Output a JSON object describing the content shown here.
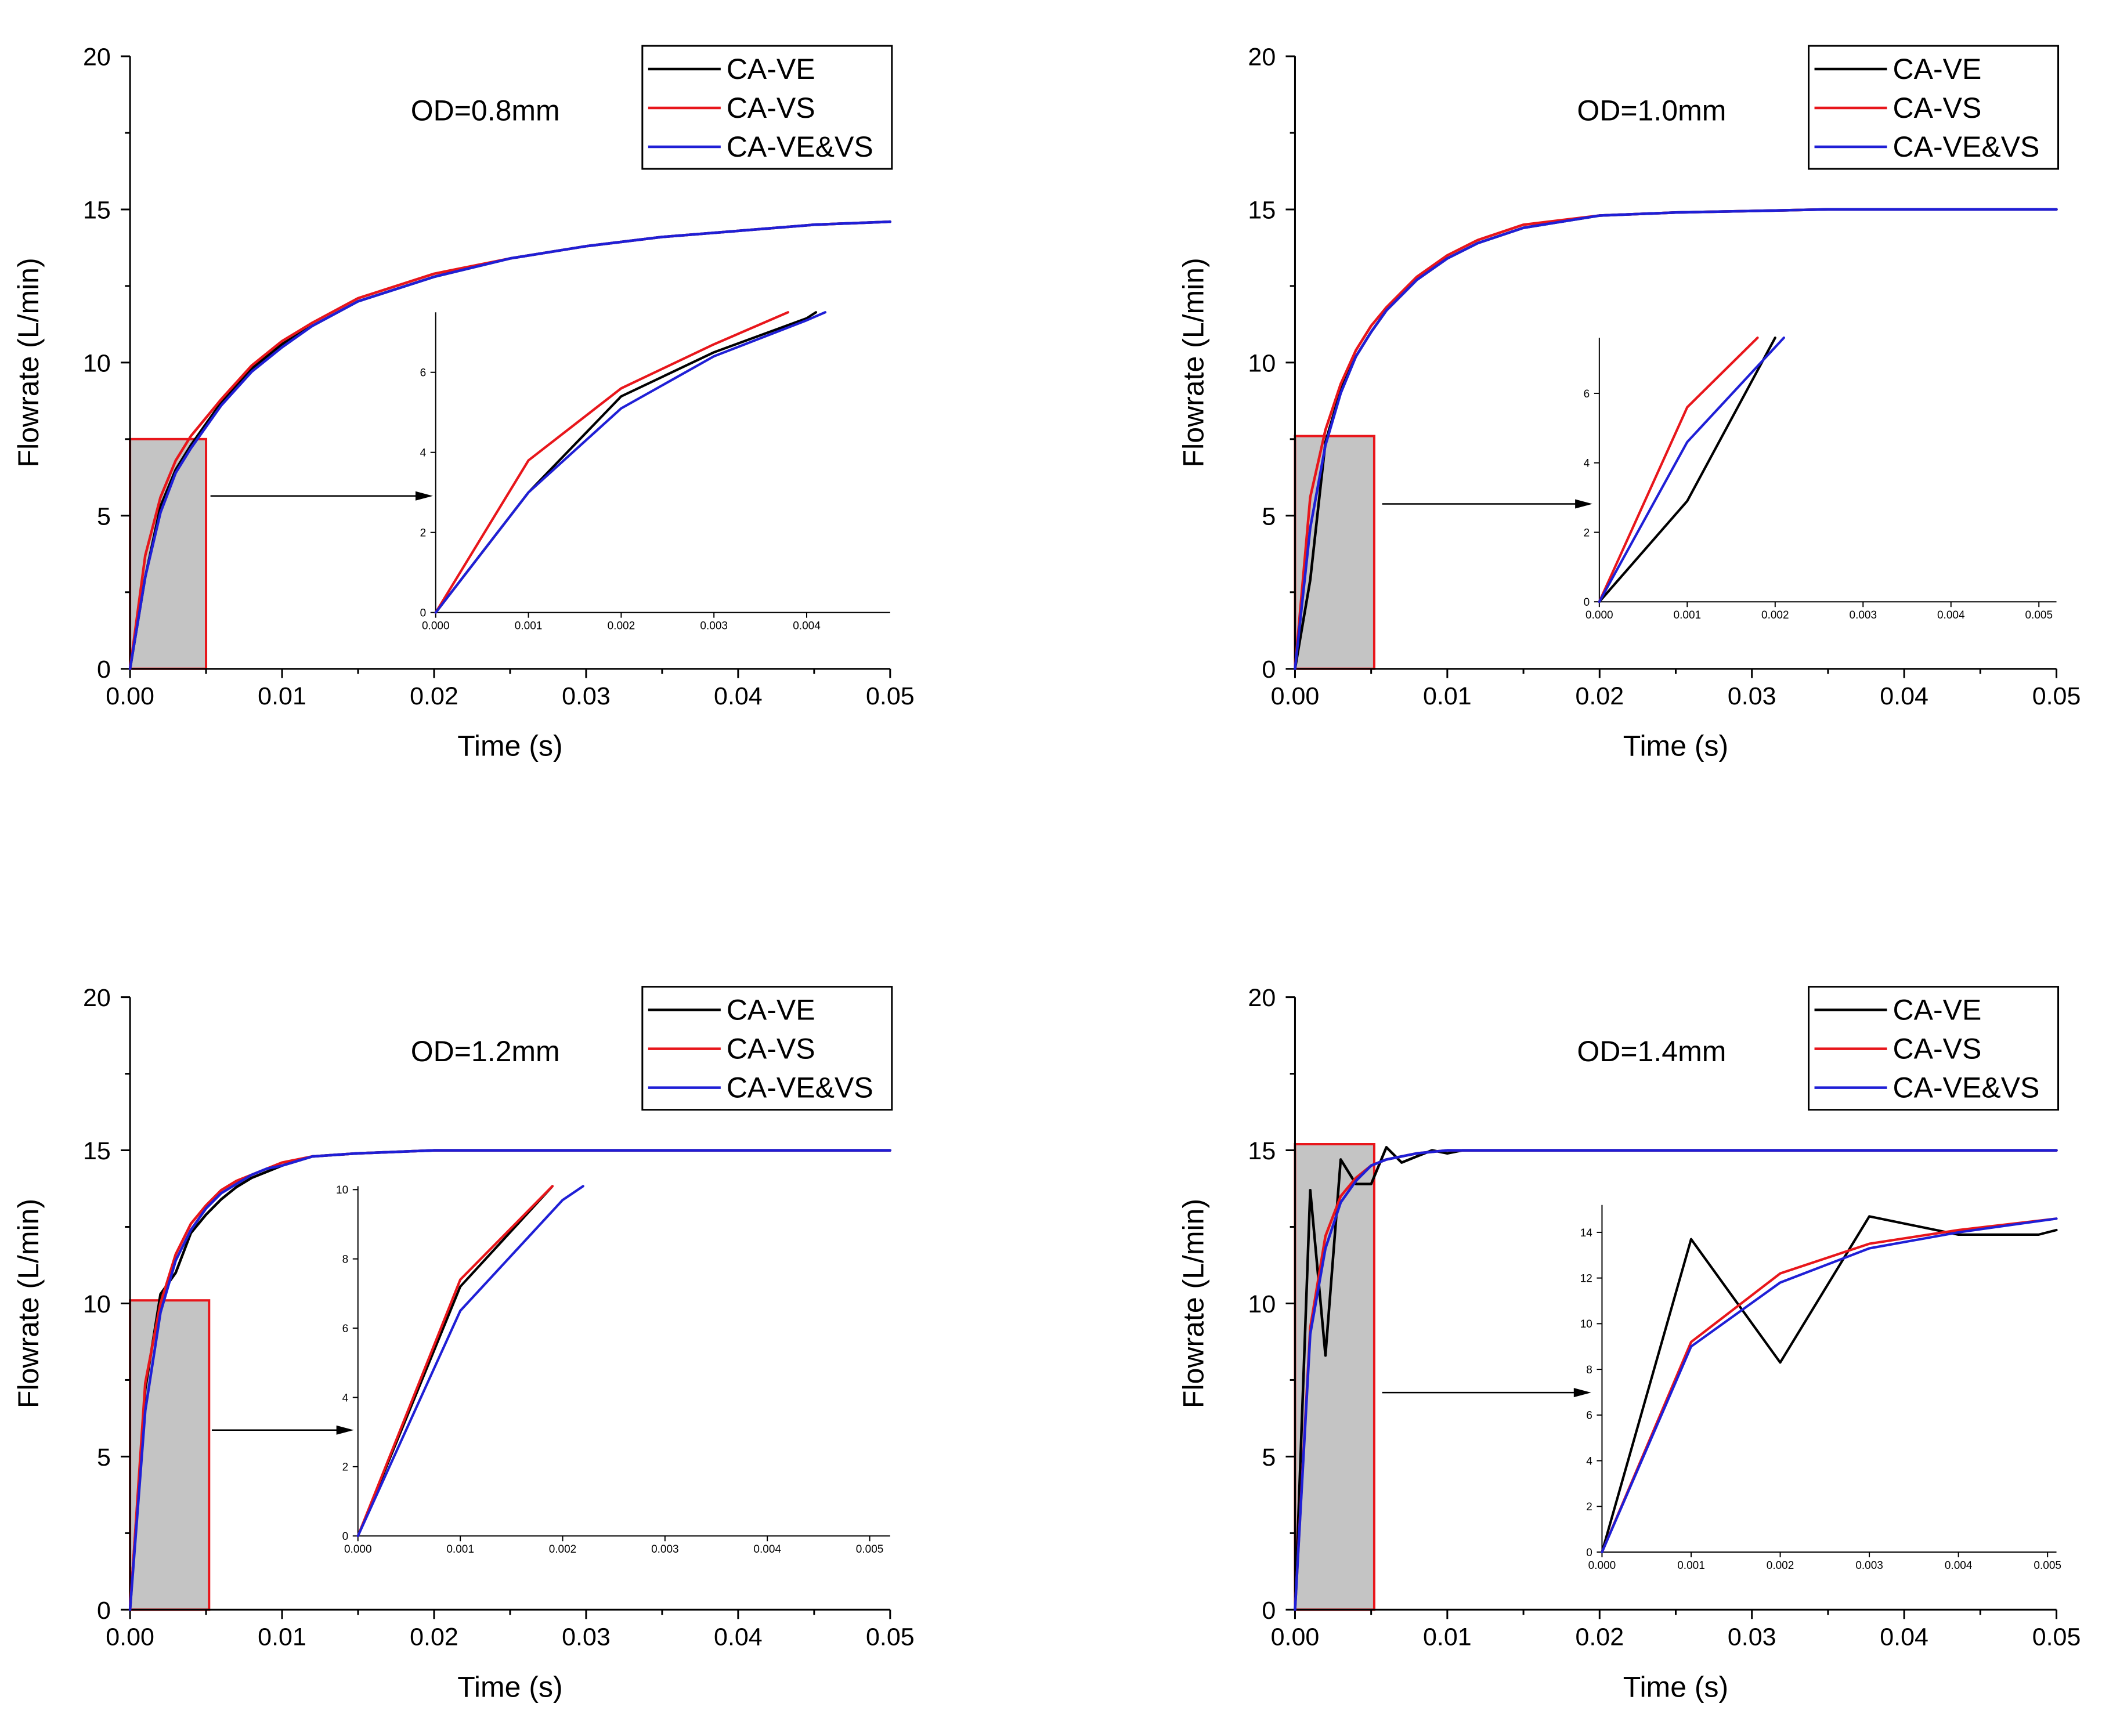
{
  "figure": {
    "legend_labels": [
      "CA-VE",
      "CA-VS",
      "CA-VE&VS"
    ],
    "colors": {
      "CA-VE": "#000000",
      "CA-VS": "#e8161b",
      "CA-VE&VS": "#1f1fd6",
      "zoom_fill": "#c4c4c4",
      "zoom_edge": "#e8161b"
    }
  },
  "chart_data": [
    {
      "type": "line",
      "annotation": "OD=0.8mm",
      "xlabel": "Time (s)",
      "ylabel": "Flowrate (L/min)",
      "xlim": [
        0,
        0.05
      ],
      "ylim": [
        0,
        20
      ],
      "xticks": [
        0,
        0.01,
        0.02,
        0.03,
        0.04,
        0.05
      ],
      "xtick_labels": [
        "0.00",
        "0.01",
        "0.02",
        "0.03",
        "0.04",
        "0.05"
      ],
      "yticks": [
        0,
        5,
        10,
        15,
        20
      ],
      "ytick_labels": [
        "0",
        "5",
        "10",
        "15",
        "20"
      ],
      "legend_position": "top-right",
      "zoom_region": {
        "x": [
          0,
          0.005
        ],
        "y": [
          0,
          7.5
        ]
      },
      "series": [
        {
          "name": "CA-VE",
          "x": [
            0,
            0.001,
            0.002,
            0.003,
            0.004,
            0.005,
            0.006,
            0.008,
            0.01,
            0.012,
            0.015,
            0.02,
            0.025,
            0.03,
            0.035,
            0.04,
            0.045,
            0.05
          ],
          "y": [
            0,
            3.0,
            5.3,
            6.5,
            7.3,
            8.0,
            8.7,
            9.8,
            10.6,
            11.2,
            12.0,
            12.8,
            13.4,
            13.8,
            14.1,
            14.3,
            14.5,
            14.6
          ]
        },
        {
          "name": "CA-VS",
          "x": [
            0,
            0.001,
            0.002,
            0.003,
            0.004,
            0.005,
            0.006,
            0.008,
            0.01,
            0.012,
            0.015,
            0.02,
            0.025,
            0.03,
            0.035,
            0.04,
            0.045,
            0.05
          ],
          "y": [
            0,
            3.7,
            5.6,
            6.8,
            7.6,
            8.2,
            8.8,
            9.9,
            10.7,
            11.3,
            12.1,
            12.9,
            13.4,
            13.8,
            14.1,
            14.3,
            14.5,
            14.6
          ]
        },
        {
          "name": "CA-VE&VS",
          "x": [
            0,
            0.001,
            0.002,
            0.003,
            0.004,
            0.005,
            0.006,
            0.008,
            0.01,
            0.012,
            0.015,
            0.02,
            0.025,
            0.03,
            0.035,
            0.04,
            0.045,
            0.05
          ],
          "y": [
            0,
            3.0,
            5.1,
            6.4,
            7.2,
            7.9,
            8.6,
            9.7,
            10.5,
            11.2,
            12.0,
            12.8,
            13.4,
            13.8,
            14.1,
            14.3,
            14.5,
            14.6
          ]
        }
      ],
      "inset": {
        "xlim": [
          0,
          0.0049
        ],
        "ylim": [
          0,
          7.5
        ],
        "xticks": [
          0,
          0.001,
          0.002,
          0.003,
          0.004
        ],
        "xtick_labels": [
          "0.000",
          "0.001",
          "0.002",
          "0.003",
          "0.004"
        ],
        "yticks": [
          0,
          2,
          4,
          6
        ],
        "ytick_labels": [
          "0",
          "2",
          "4",
          "6"
        ],
        "series": [
          {
            "name": "CA-VE",
            "x": [
              0,
              0.001,
              0.002,
              0.003,
              0.004,
              0.0041
            ],
            "y": [
              0,
              3.0,
              5.4,
              6.5,
              7.35,
              7.5
            ]
          },
          {
            "name": "CA-VS",
            "x": [
              0,
              0.001,
              0.002,
              0.003,
              0.0038
            ],
            "y": [
              0,
              3.8,
              5.6,
              6.7,
              7.5
            ]
          },
          {
            "name": "CA-VE&VS",
            "x": [
              0,
              0.001,
              0.002,
              0.003,
              0.004,
              0.0042
            ],
            "y": [
              0,
              3.0,
              5.1,
              6.4,
              7.3,
              7.5
            ]
          }
        ]
      }
    },
    {
      "type": "line",
      "annotation": "OD=1.0mm",
      "xlabel": "Time (s)",
      "ylabel": "Flowrate (L/min)",
      "xlim": [
        0,
        0.05
      ],
      "ylim": [
        0,
        20
      ],
      "xticks": [
        0,
        0.01,
        0.02,
        0.03,
        0.04,
        0.05
      ],
      "xtick_labels": [
        "0.00",
        "0.01",
        "0.02",
        "0.03",
        "0.04",
        "0.05"
      ],
      "yticks": [
        0,
        5,
        10,
        15,
        20
      ],
      "ytick_labels": [
        "0",
        "5",
        "10",
        "15",
        "20"
      ],
      "legend_position": "top-right",
      "zoom_region": {
        "x": [
          0,
          0.0052
        ],
        "y": [
          0,
          7.6
        ]
      },
      "series": [
        {
          "name": "CA-VE",
          "x": [
            0,
            0.001,
            0.002,
            0.003,
            0.004,
            0.005,
            0.006,
            0.008,
            0.01,
            0.012,
            0.015,
            0.02,
            0.025,
            0.03,
            0.035,
            0.04,
            0.05
          ],
          "y": [
            0,
            2.9,
            7.4,
            9.1,
            10.2,
            11.0,
            11.7,
            12.7,
            13.4,
            13.9,
            14.4,
            14.8,
            14.9,
            14.95,
            15.0,
            15.0,
            15.0
          ]
        },
        {
          "name": "CA-VS",
          "x": [
            0,
            0.001,
            0.002,
            0.003,
            0.004,
            0.005,
            0.006,
            0.008,
            0.01,
            0.012,
            0.015,
            0.02,
            0.025,
            0.03,
            0.035,
            0.04,
            0.05
          ],
          "y": [
            0,
            5.6,
            7.8,
            9.3,
            10.4,
            11.2,
            11.8,
            12.8,
            13.5,
            14.0,
            14.5,
            14.8,
            14.9,
            14.95,
            15.0,
            15.0,
            15.0
          ]
        },
        {
          "name": "CA-VE&VS",
          "x": [
            0,
            0.001,
            0.002,
            0.003,
            0.004,
            0.005,
            0.006,
            0.008,
            0.01,
            0.012,
            0.015,
            0.02,
            0.025,
            0.03,
            0.035,
            0.04,
            0.05
          ],
          "y": [
            0,
            4.6,
            7.3,
            9.0,
            10.2,
            11.0,
            11.7,
            12.7,
            13.4,
            13.9,
            14.4,
            14.8,
            14.9,
            14.95,
            15.0,
            15.0,
            15.0
          ]
        }
      ],
      "inset": {
        "xlim": [
          0,
          0.0052
        ],
        "ylim": [
          0,
          7.6
        ],
        "xticks": [
          0,
          0.001,
          0.002,
          0.003,
          0.004,
          0.005
        ],
        "xtick_labels": [
          "0.000",
          "0.001",
          "0.002",
          "0.003",
          "0.004",
          "0.005"
        ],
        "yticks": [
          0,
          2,
          4,
          6
        ],
        "ytick_labels": [
          "0",
          "2",
          "4",
          "6"
        ],
        "series": [
          {
            "name": "CA-VE",
            "x": [
              0,
              0.001,
              0.002
            ],
            "y": [
              0,
              2.9,
              7.6
            ]
          },
          {
            "name": "CA-VS",
            "x": [
              0,
              0.001,
              0.0018
            ],
            "y": [
              0,
              5.6,
              7.6
            ]
          },
          {
            "name": "CA-VE&VS",
            "x": [
              0,
              0.001,
              0.0021
            ],
            "y": [
              0,
              4.6,
              7.6
            ]
          }
        ]
      }
    },
    {
      "type": "line",
      "annotation": "OD=1.2mm",
      "xlabel": "Time (s)",
      "ylabel": "Flowrate (L/min)",
      "xlim": [
        0,
        0.05
      ],
      "ylim": [
        0,
        20
      ],
      "xticks": [
        0,
        0.01,
        0.02,
        0.03,
        0.04,
        0.05
      ],
      "xtick_labels": [
        "0.00",
        "0.01",
        "0.02",
        "0.03",
        "0.04",
        "0.05"
      ],
      "yticks": [
        0,
        5,
        10,
        15,
        20
      ],
      "ytick_labels": [
        "0",
        "5",
        "10",
        "15",
        "20"
      ],
      "legend_position": "top-right",
      "zoom_region": {
        "x": [
          0,
          0.0052
        ],
        "y": [
          0,
          10.1
        ]
      },
      "series": [
        {
          "name": "CA-VE",
          "x": [
            0,
            0.001,
            0.002,
            0.003,
            0.004,
            0.005,
            0.006,
            0.007,
            0.008,
            0.009,
            0.01,
            0.012,
            0.015,
            0.02,
            0.025,
            0.03,
            0.04,
            0.05
          ],
          "y": [
            0,
            7.2,
            10.3,
            11.0,
            12.3,
            12.9,
            13.4,
            13.8,
            14.1,
            14.3,
            14.5,
            14.8,
            14.9,
            15.0,
            15.0,
            15.0,
            15.0,
            15.0
          ]
        },
        {
          "name": "CA-VS",
          "x": [
            0,
            0.001,
            0.002,
            0.003,
            0.004,
            0.005,
            0.006,
            0.007,
            0.008,
            0.009,
            0.01,
            0.012,
            0.015,
            0.02,
            0.025,
            0.03,
            0.04,
            0.05
          ],
          "y": [
            0,
            7.4,
            10.0,
            11.6,
            12.6,
            13.2,
            13.7,
            14.0,
            14.2,
            14.4,
            14.6,
            14.8,
            14.9,
            15.0,
            15.0,
            15.0,
            15.0,
            15.0
          ]
        },
        {
          "name": "CA-VE&VS",
          "x": [
            0,
            0.001,
            0.002,
            0.003,
            0.004,
            0.005,
            0.006,
            0.007,
            0.008,
            0.009,
            0.01,
            0.012,
            0.015,
            0.02,
            0.025,
            0.03,
            0.04,
            0.05
          ],
          "y": [
            0,
            6.5,
            9.7,
            11.4,
            12.4,
            13.1,
            13.6,
            13.9,
            14.2,
            14.4,
            14.5,
            14.8,
            14.9,
            15.0,
            15.0,
            15.0,
            15.0,
            15.0
          ]
        }
      ],
      "inset": {
        "xlim": [
          0,
          0.0052
        ],
        "ylim": [
          0,
          10.1
        ],
        "xticks": [
          0,
          0.001,
          0.002,
          0.003,
          0.004,
          0.005
        ],
        "xtick_labels": [
          "0.000",
          "0.001",
          "0.002",
          "0.003",
          "0.004",
          "0.005"
        ],
        "yticks": [
          0,
          2,
          4,
          6,
          8,
          10
        ],
        "ytick_labels": [
          "0",
          "2",
          "4",
          "6",
          "8",
          "10"
        ],
        "series": [
          {
            "name": "CA-VE",
            "x": [
              0,
              0.001,
              0.0019
            ],
            "y": [
              0,
              7.2,
              10.1
            ]
          },
          {
            "name": "CA-VS",
            "x": [
              0,
              0.001,
              0.0019
            ],
            "y": [
              0,
              7.4,
              10.1
            ]
          },
          {
            "name": "CA-VE&VS",
            "x": [
              0,
              0.001,
              0.002,
              0.0022
            ],
            "y": [
              0,
              6.5,
              9.7,
              10.1
            ]
          }
        ]
      }
    },
    {
      "type": "line",
      "annotation": "OD=1.4mm",
      "xlabel": "Time (s)",
      "ylabel": "Flowrate (L/min)",
      "xlim": [
        0,
        0.05
      ],
      "ylim": [
        0,
        20
      ],
      "xticks": [
        0,
        0.01,
        0.02,
        0.03,
        0.04,
        0.05
      ],
      "xtick_labels": [
        "0.00",
        "0.01",
        "0.02",
        "0.03",
        "0.04",
        "0.05"
      ],
      "yticks": [
        0,
        5,
        10,
        15,
        20
      ],
      "ytick_labels": [
        "0",
        "5",
        "10",
        "15",
        "20"
      ],
      "legend_position": "top-right",
      "zoom_region": {
        "x": [
          0,
          0.0052
        ],
        "y": [
          0,
          15.2
        ]
      },
      "series": [
        {
          "name": "CA-VE",
          "x": [
            0,
            0.001,
            0.002,
            0.003,
            0.004,
            0.005,
            0.006,
            0.007,
            0.008,
            0.009,
            0.01,
            0.011,
            0.012,
            0.015,
            0.02,
            0.03,
            0.04,
            0.05
          ],
          "y": [
            0,
            13.7,
            8.3,
            14.7,
            13.9,
            13.9,
            15.1,
            14.6,
            14.8,
            15.0,
            14.9,
            15.0,
            15.0,
            15.0,
            15.0,
            15.0,
            15.0,
            15.0
          ]
        },
        {
          "name": "CA-VS",
          "x": [
            0,
            0.001,
            0.002,
            0.003,
            0.004,
            0.005,
            0.006,
            0.007,
            0.008,
            0.009,
            0.01,
            0.012,
            0.015,
            0.02,
            0.03,
            0.04,
            0.05
          ],
          "y": [
            0,
            9.2,
            12.2,
            13.5,
            14.1,
            14.5,
            14.7,
            14.8,
            14.9,
            14.95,
            15.0,
            15.0,
            15.0,
            15.0,
            15.0,
            15.0,
            15.0
          ]
        },
        {
          "name": "CA-VE&VS",
          "x": [
            0,
            0.001,
            0.002,
            0.003,
            0.004,
            0.005,
            0.006,
            0.007,
            0.008,
            0.009,
            0.01,
            0.012,
            0.015,
            0.02,
            0.03,
            0.04,
            0.05
          ],
          "y": [
            0,
            9.0,
            11.8,
            13.3,
            14.0,
            14.5,
            14.7,
            14.8,
            14.9,
            14.95,
            15.0,
            15.0,
            15.0,
            15.0,
            15.0,
            15.0,
            15.0
          ]
        }
      ],
      "inset": {
        "xlim": [
          0,
          0.0051
        ],
        "ylim": [
          0,
          15.2
        ],
        "xticks": [
          0,
          0.001,
          0.002,
          0.003,
          0.004,
          0.005
        ],
        "xtick_labels": [
          "0.000",
          "0.001",
          "0.002",
          "0.003",
          "0.004",
          "0.005"
        ],
        "yticks": [
          0,
          2,
          4,
          6,
          8,
          10,
          12,
          14
        ],
        "ytick_labels": [
          "0",
          "2",
          "4",
          "6",
          "8",
          "10",
          "12",
          "14"
        ],
        "series": [
          {
            "name": "CA-VE",
            "x": [
              0,
              0.001,
              0.002,
              0.003,
              0.004,
              0.0049,
              0.0051
            ],
            "y": [
              0,
              13.7,
              8.3,
              14.7,
              13.9,
              13.9,
              14.1
            ]
          },
          {
            "name": "CA-VS",
            "x": [
              0,
              0.001,
              0.002,
              0.003,
              0.004,
              0.0051
            ],
            "y": [
              0,
              9.2,
              12.2,
              13.5,
              14.1,
              14.6
            ]
          },
          {
            "name": "CA-VE&VS",
            "x": [
              0,
              0.001,
              0.002,
              0.003,
              0.004,
              0.0051
            ],
            "y": [
              0,
              9.0,
              11.8,
              13.3,
              14.0,
              14.6
            ]
          }
        ]
      }
    }
  ]
}
